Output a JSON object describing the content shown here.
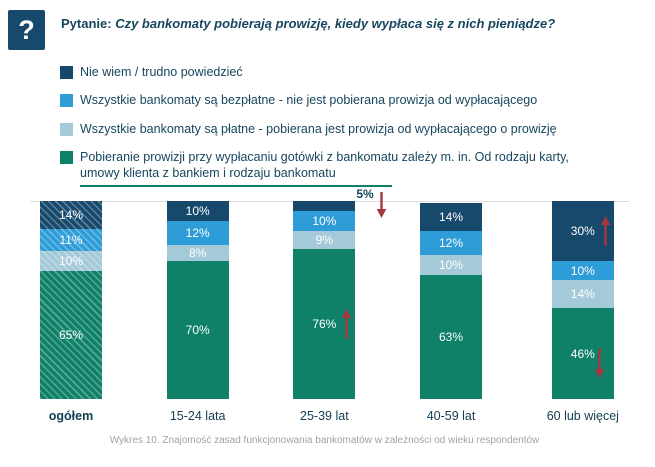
{
  "colors": {
    "navy": "#17496D",
    "blue": "#2E9CD6",
    "lightblue": "#A4C9D8",
    "green": "#0E8168",
    "arrow_red": "#A6373F"
  },
  "header": {
    "icon_glyph": "?",
    "title_prefix": "Pytanie:",
    "title_question": "Czy bankomaty pobierają prowizję, kiedy wypłaca się z nich pieniądze?"
  },
  "legend": [
    {
      "color_key": "navy",
      "lines": [
        "Nie wiem / trudno powiedzieć"
      ]
    },
    {
      "color_key": "blue",
      "lines": [
        "Wszystkie bankomaty są bezpłatne - nie jest pobierana prowizja od wypłacającego"
      ]
    },
    {
      "color_key": "lightblue",
      "lines": [
        "Wszystkie bankomaty są płatne - pobierana jest prowizja od wypłacającego o prowizję"
      ]
    },
    {
      "color_key": "green",
      "lines": [
        "Pobieranie prowizji przy wypłacaniu gotówki z bankomatu zależy m. in. Od rodzaju karty,",
        "umowy klienta z bankiem i rodzaju bankomatu"
      ],
      "underline_last_line": true
    }
  ],
  "chart_data": {
    "type": "bar",
    "stacked": true,
    "unit": "%",
    "ylim": [
      0,
      100
    ],
    "grid": false,
    "legend_position": "top",
    "categories": [
      "ogółem",
      "15-24 lata",
      "25-39 lat",
      "40-59 lat",
      "60 lub więcej"
    ],
    "hatched_category": "ogółem",
    "series": [
      {
        "color_key": "green",
        "name": "Pobieranie prowizji przy wypłacaniu gotówki z bankomatu zależy m. in. Od rodzaju karty, umowy klienta z bankiem i rodzaju bankomatu",
        "values": [
          65,
          70,
          76,
          63,
          46
        ]
      },
      {
        "color_key": "lightblue",
        "name": "Wszystkie bankomaty są płatne - pobierana jest prowizja od wypłacającego o prowizję",
        "values": [
          10,
          8,
          9,
          10,
          14
        ]
      },
      {
        "color_key": "blue",
        "name": "Wszystkie bankomaty są bezpłatne - nie jest pobierana prowizja od wypłacającego",
        "values": [
          11,
          12,
          10,
          12,
          10
        ]
      },
      {
        "color_key": "navy",
        "name": "Nie wiem / trudno powiedzieć",
        "values": [
          14,
          10,
          5,
          14,
          30
        ]
      }
    ],
    "arrows": [
      {
        "category": "25-39 lat",
        "series": "navy",
        "direction": "down",
        "label_outside": true
      },
      {
        "category": "25-39 lat",
        "series": "green",
        "direction": "up"
      },
      {
        "category": "60 lub więcej",
        "series": "navy",
        "direction": "up"
      },
      {
        "category": "60 lub więcej",
        "series": "green",
        "direction": "down"
      }
    ]
  },
  "caption": "Wykres 10. Znajomość zasad funkcjonowania bankomatów w zależności od wieku respondentów"
}
